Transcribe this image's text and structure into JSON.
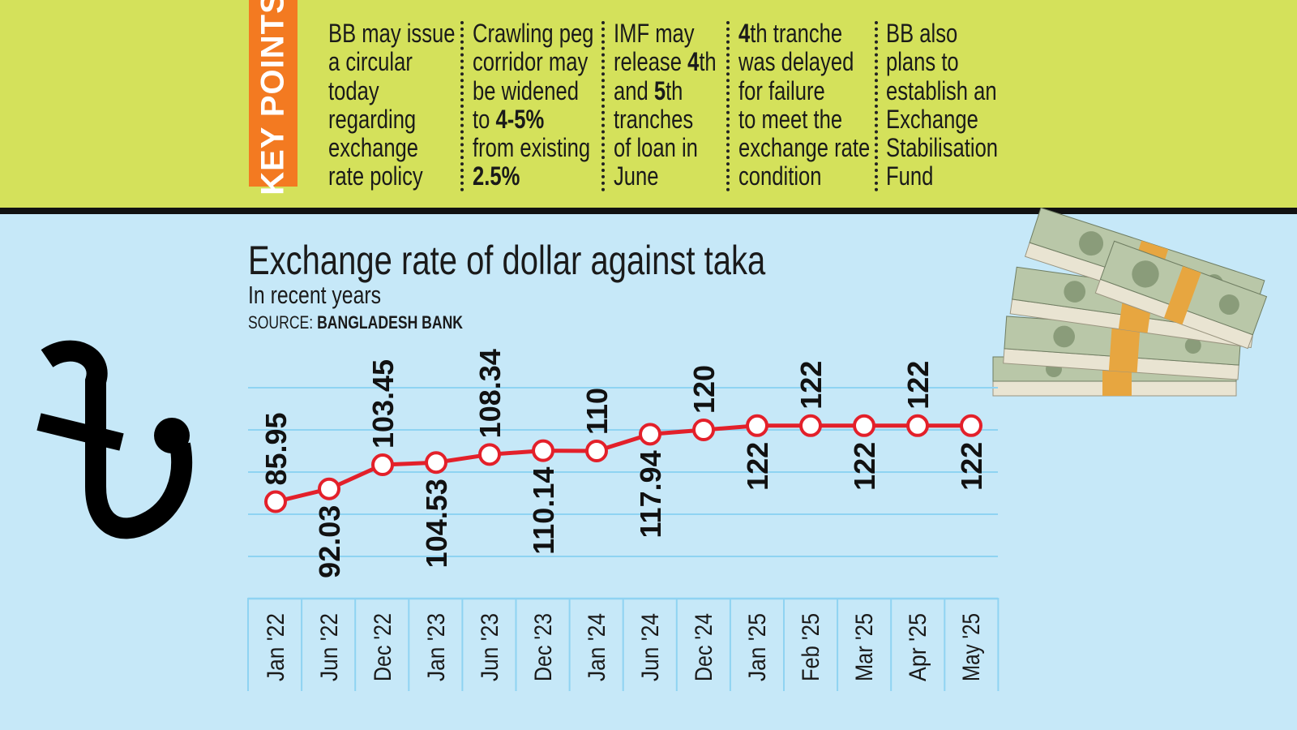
{
  "key_points": {
    "heading": "KEY POINTS",
    "columns": [
      [
        [
          {
            "t": "BB may issue"
          }
        ],
        [
          {
            "t": "a circular"
          }
        ],
        [
          {
            "t": "today"
          }
        ],
        [
          {
            "t": "regarding"
          }
        ],
        [
          {
            "t": "exchange"
          }
        ],
        [
          {
            "t": "rate policy"
          }
        ]
      ],
      [
        [
          {
            "t": "Crawling peg"
          }
        ],
        [
          {
            "t": "corridor may"
          }
        ],
        [
          {
            "t": "be widened"
          }
        ],
        [
          {
            "t": "to "
          },
          {
            "t": "4-5%",
            "b": true
          }
        ],
        [
          {
            "t": "from existing"
          }
        ],
        [
          {
            "t": "2.5%",
            "b": true
          }
        ]
      ],
      [
        [
          {
            "t": "IMF may"
          }
        ],
        [
          {
            "t": "release "
          },
          {
            "t": "4",
            "b": true
          },
          {
            "t": "th"
          }
        ],
        [
          {
            "t": "and "
          },
          {
            "t": "5",
            "b": true
          },
          {
            "t": "th"
          }
        ],
        [
          {
            "t": "tranches"
          }
        ],
        [
          {
            "t": "of loan in"
          }
        ],
        [
          {
            "t": "June"
          }
        ]
      ],
      [
        [
          {
            "t": "4",
            "b": true
          },
          {
            "t": "th tranche"
          }
        ],
        [
          {
            "t": "was delayed"
          }
        ],
        [
          {
            "t": "for failure"
          }
        ],
        [
          {
            "t": "to meet the"
          }
        ],
        [
          {
            "t": "exchange rate"
          }
        ],
        [
          {
            "t": "condition"
          }
        ]
      ],
      [
        [
          {
            "t": "BB also"
          }
        ],
        [
          {
            "t": "plans to"
          }
        ],
        [
          {
            "t": "establish an"
          }
        ],
        [
          {
            "t": "Exchange"
          }
        ],
        [
          {
            "t": "Stabilisation"
          }
        ],
        [
          {
            "t": "Fund"
          }
        ]
      ]
    ]
  },
  "colors": {
    "top_band": "#d4e15b",
    "accent": "#f37a21",
    "background": "#c6e8f8",
    "line": "#e3202a",
    "grid": "#8fd3f2"
  },
  "icons": [
    "taka-sign-icon",
    "money-stack-icon"
  ],
  "chart_data": {
    "type": "line",
    "title": "Exchange rate of dollar against taka",
    "subtitle": "In recent years",
    "source_label": "SOURCE:",
    "source": "BANGLADESH BANK",
    "categories": [
      "Jan '22",
      "Jun '22",
      "Dec '22",
      "Jan '23",
      "Jun '23",
      "Dec '23",
      "Jan '24",
      "Jun '24",
      "Dec '24",
      "Jan '25",
      "Feb '25",
      "Mar '25",
      "Apr '25",
      "May '25"
    ],
    "values": [
      85.95,
      92.03,
      103.45,
      104.53,
      108.34,
      110.14,
      110,
      117.94,
      120,
      122,
      122,
      122,
      122,
      122
    ],
    "data_labels": [
      "85.95",
      "92.03",
      "103.45",
      "104.53",
      "108.34",
      "110.14",
      "110",
      "117.94",
      "120",
      "122",
      "122",
      "122",
      "122",
      "122"
    ],
    "grid": true,
    "gridlines": [
      40,
      60,
      80,
      100,
      120,
      140
    ],
    "ylim": [
      40,
      140
    ]
  }
}
